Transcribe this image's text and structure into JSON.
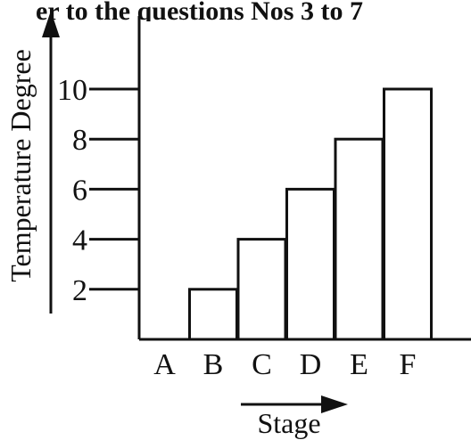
{
  "header": {
    "partial_text": "er to the questions Nos 3 to 7"
  },
  "chart_data": {
    "type": "bar",
    "categories": [
      "A",
      "B",
      "C",
      "D",
      "E",
      "F"
    ],
    "values": [
      0,
      2,
      4,
      6,
      8,
      10
    ],
    "title": "",
    "xlabel": "Stage",
    "ylabel": "Temperature Degree",
    "yticks": [
      2,
      4,
      6,
      8,
      10
    ],
    "ytick_labels": [
      "2",
      "4",
      "6",
      "8",
      "10"
    ],
    "ylim": [
      0,
      10
    ],
    "grid": false,
    "legend": "none",
    "bar_fill": "#ffffff",
    "bar_stroke": "#111111",
    "axis_color": "#111111"
  }
}
